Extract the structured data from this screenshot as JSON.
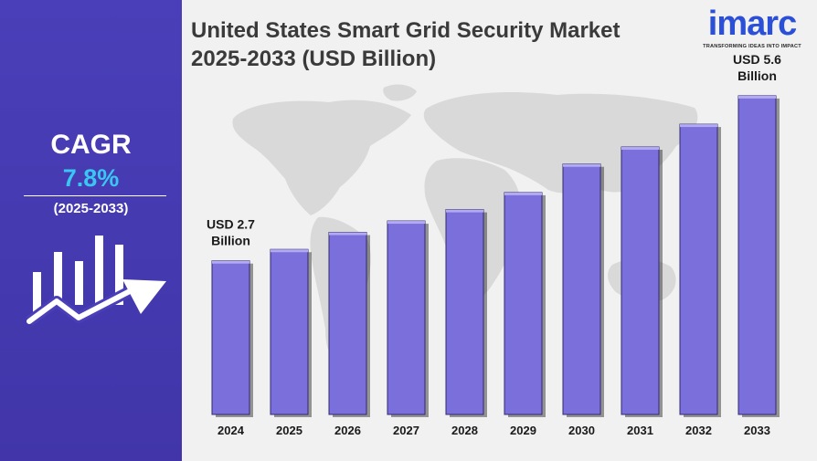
{
  "sidebar": {
    "cagr_label": "CAGR",
    "cagr_value": "7.8%",
    "cagr_period": "(2025-2033)",
    "icon": "bar-growth-arrow-icon"
  },
  "header": {
    "title_line1": "United States Smart Grid Security Market",
    "title_line2": "2025-2033 (USD Billion)"
  },
  "logo": {
    "word": "imarc",
    "tagline": "TRANSFORMING IDEAS INTO IMPACT"
  },
  "colors": {
    "sidebar": "#4a3fb8",
    "bar": "#7b6fdc",
    "cagr_value": "#39c6f2",
    "logo": "#2b4fd6"
  },
  "chart_data": {
    "type": "bar",
    "title": "United States Smart Grid Security Market 2025-2033 (USD Billion)",
    "categories": [
      "2024",
      "2025",
      "2026",
      "2027",
      "2028",
      "2029",
      "2030",
      "2031",
      "2032",
      "2033"
    ],
    "values": [
      2.7,
      2.9,
      3.2,
      3.4,
      3.6,
      3.9,
      4.4,
      4.7,
      5.1,
      5.6
    ],
    "annotations": [
      {
        "category": "2024",
        "line1": "USD 2.7",
        "line2": "Billion"
      },
      {
        "category": "2033",
        "line1": "USD 5.6",
        "line2": "Billion"
      }
    ],
    "ylim": [
      0,
      6
    ],
    "grid": false,
    "background": "world map"
  }
}
